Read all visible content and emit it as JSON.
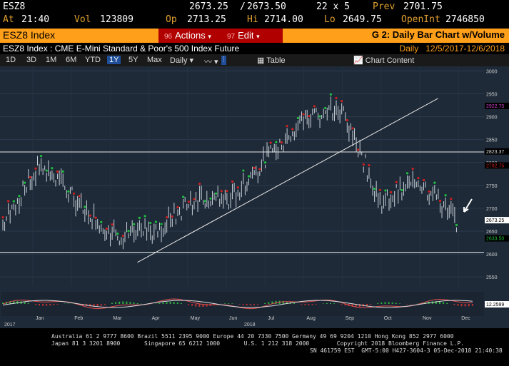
{
  "quote": {
    "ticker": "ESZ8",
    "price": "2673.25",
    "bid_ask": "2673.50",
    "size": "22 x 5",
    "prev_label": "Prev",
    "prev": "2701.75",
    "at_label": "At",
    "time": "21:40",
    "vol_label": "Vol",
    "vol": "123809",
    "op_label": "Op",
    "op": "2713.25",
    "hi_label": "Hi",
    "hi": "2714.00",
    "lo_label": "Lo",
    "lo": "2649.75",
    "openint_label": "OpenInt",
    "openint": "2746850"
  },
  "toolbar": {
    "security": "ESZ8 Index",
    "actions_num": "96",
    "actions_label": "Actions",
    "edit_num": "97",
    "edit_label": "Edit",
    "graph_title": "G 2: Daily Bar Chart w/Volume"
  },
  "description": {
    "text": "ESZ8 Index : CME E-Mini Standard & Poor's 500 Index Future",
    "period": "Daily",
    "range": "12/5/2017-12/6/2018"
  },
  "tools": {
    "ranges": [
      "1D",
      "3D",
      "1M",
      "6M",
      "YTD",
      "1Y",
      "5Y",
      "Max"
    ],
    "selected": "1Y",
    "freq": "Daily",
    "chart_content": "Chart Content",
    "table": "Table"
  },
  "colors": {
    "accent": "#ff9f1a",
    "bg": "#1e2a38",
    "bar": "#c8d0d8",
    "green_marker": "#1fbf3f",
    "red_marker": "#d02020",
    "magenta": "#d040d0"
  },
  "chart_data": {
    "type": "bar",
    "x_tick_labels": [
      "Jan",
      "Feb",
      "Mar",
      "Apr",
      "May",
      "Jun",
      "Jul",
      "Aug",
      "Sep",
      "Oct",
      "Nov",
      "Dec"
    ],
    "year_labels": [
      "2017",
      "2018"
    ],
    "y_tick_labels": [
      "3000",
      "2950",
      "2900",
      "2850",
      "2800",
      "2750",
      "2700",
      "2650",
      "2600",
      "2550"
    ],
    "ylim": [
      2530,
      3010
    ],
    "last_price_label": "2673.25",
    "level_labels": [
      "2823.37",
      "2922.75",
      "2792.75",
      "2633.50"
    ],
    "monthly_close": [
      2664,
      2800,
      2710,
      2640,
      2650,
      2715,
      2720,
      2810,
      2900,
      2915,
      2710,
      2760,
      2673
    ],
    "lower_panel_label": "12.2599",
    "horizontal_levels": [
      2823,
      2604
    ],
    "trendline": {
      "from": [
        2582,
        "Apr"
      ],
      "to": [
        2940,
        "Sep"
      ]
    }
  },
  "footer": {
    "line1": "Australia 61 2 9777 8600 Brazil 5511 2395 9000 Europe 44 20 7330 7500 Germany 49 69 9204 1210 Hong Kong 852 2977 6000",
    "line2": "Japan 81 3 3201 8900       Singapore 65 6212 1000       U.S. 1 212 318 2000        Copyright 2018 Bloomberg Finance L.P.",
    "line3": "SN 461759 EST  GMT-5:00 H427-3604-3 05-Dec-2018 21:40:38"
  }
}
